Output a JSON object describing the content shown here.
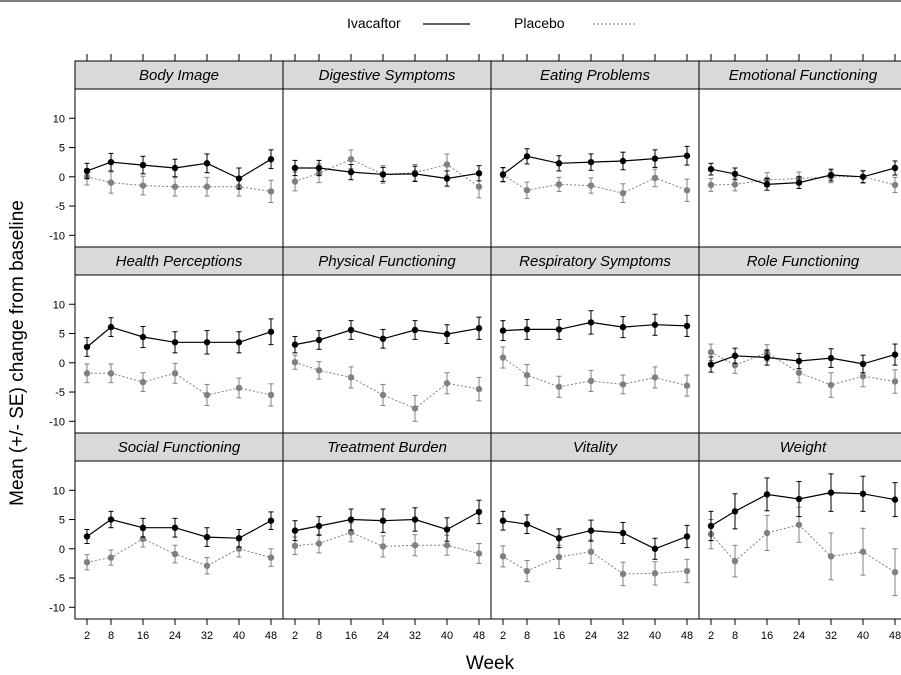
{
  "chart_data": {
    "type": "line",
    "ylabel": "Mean (+/- SE) change from baseline",
    "xlabel": "Week",
    "x": [
      2,
      8,
      16,
      24,
      32,
      40,
      48
    ],
    "x_ticks": [
      "2",
      "8",
      "16",
      "24",
      "32",
      "40",
      "48"
    ],
    "ylim": [
      -12,
      15
    ],
    "y_ticks": [
      "10",
      "5",
      "0",
      "-5",
      "-10"
    ],
    "y_tick_values": [
      10,
      5,
      0,
      -5,
      -10
    ],
    "legend": {
      "position": "top-center",
      "items": [
        {
          "name": "Ivacaftor",
          "color": "#000000",
          "style": "solid"
        },
        {
          "name": "Placebo",
          "color": "#808080",
          "style": "dotted"
        }
      ]
    },
    "panels": [
      {
        "title": "Body Image",
        "series": [
          {
            "name": "Ivacaftor",
            "values": [
              1,
              2.5,
              2,
              1.5,
              2.3,
              -0.3,
              3
            ],
            "se": [
              1.3,
              1.5,
              1.5,
              1.5,
              1.6,
              1.8,
              1.6
            ]
          },
          {
            "name": "Placebo",
            "values": [
              0,
              -1,
              -1.5,
              -1.7,
              -1.7,
              -1.7,
              -2.5
            ],
            "se": [
              1.4,
              1.8,
              1.6,
              1.6,
              1.6,
              1.6,
              1.9
            ]
          }
        ]
      },
      {
        "title": "Digestive Symptoms",
        "series": [
          {
            "name": "Ivacaftor",
            "values": [
              1.5,
              1.5,
              0.8,
              0.4,
              0.5,
              -0.3,
              0.6
            ],
            "se": [
              1.3,
              1.3,
              1.3,
              1.2,
              1.3,
              1.3,
              1.3
            ]
          },
          {
            "name": "Placebo",
            "values": [
              -0.8,
              0.6,
              3,
              0.4,
              0.7,
              2.1,
              -1.7
            ],
            "se": [
              1.6,
              1.6,
              1.6,
              1.5,
              1.4,
              1.8,
              1.9
            ]
          }
        ]
      },
      {
        "title": "Eating Problems",
        "series": [
          {
            "name": "Ivacaftor",
            "values": [
              0.4,
              3.5,
              2.3,
              2.5,
              2.7,
              3.1,
              3.6
            ],
            "se": [
              1.2,
              1.3,
              1.3,
              1.4,
              1.5,
              1.5,
              1.6
            ]
          },
          {
            "name": "Placebo",
            "values": [
              0.3,
              -2.3,
              -1.3,
              -1.5,
              -2.8,
              -0.2,
              -2.3
            ],
            "se": [
              1.2,
              1.4,
              1.2,
              1.3,
              1.6,
              1.5,
              1.9
            ]
          }
        ]
      },
      {
        "title": "Emotional Functioning",
        "series": [
          {
            "name": "Ivacaftor",
            "values": [
              1.3,
              0.5,
              -1.3,
              -1,
              0.3,
              0,
              1.5
            ],
            "se": [
              1,
              1,
              1,
              1,
              1,
              1,
              1.2
            ]
          },
          {
            "name": "Placebo",
            "values": [
              -1.4,
              -1.3,
              -0.5,
              -0.3,
              0,
              0,
              -1.4
            ],
            "se": [
              1.1,
              1.1,
              1.2,
              1.1,
              1,
              1.1,
              1.3
            ]
          }
        ]
      },
      {
        "title": "Health Perceptions",
        "series": [
          {
            "name": "Ivacaftor",
            "values": [
              2.7,
              6.1,
              4.4,
              3.5,
              3.5,
              3.5,
              5.3
            ],
            "se": [
              1.6,
              1.6,
              1.8,
              1.8,
              2,
              1.8,
              2.2
            ]
          },
          {
            "name": "Placebo",
            "values": [
              -1.8,
              -1.8,
              -3.3,
              -1.8,
              -5.5,
              -4.3,
              -5.5
            ],
            "se": [
              1.6,
              1.6,
              1.6,
              1.7,
              1.8,
              1.7,
              1.9
            ]
          }
        ]
      },
      {
        "title": "Physical Functioning",
        "series": [
          {
            "name": "Ivacaftor",
            "values": [
              3.1,
              3.9,
              5.6,
              4.1,
              5.6,
              4.9,
              5.9
            ],
            "se": [
              1.4,
              1.6,
              1.6,
              1.6,
              1.6,
              1.6,
              1.9
            ]
          },
          {
            "name": "Placebo",
            "values": [
              0.1,
              -1.3,
              -2.5,
              -5.5,
              -7.8,
              -3.5,
              -4.5
            ],
            "se": [
              1.2,
              1.5,
              1.8,
              1.8,
              2.2,
              1.8,
              2
            ]
          }
        ]
      },
      {
        "title": "Respiratory Symptoms",
        "series": [
          {
            "name": "Ivacaftor",
            "values": [
              5.5,
              5.7,
              5.7,
              6.9,
              6.1,
              6.5,
              6.3
            ],
            "se": [
              1.7,
              1.7,
              1.7,
              2,
              1.8,
              1.8,
              1.8
            ]
          },
          {
            "name": "Placebo",
            "values": [
              0.9,
              -2.1,
              -4.1,
              -3.1,
              -3.7,
              -2.5,
              -3.9
            ],
            "se": [
              1.8,
              1.8,
              1.8,
              1.8,
              1.6,
              1.8,
              1.8
            ]
          }
        ]
      },
      {
        "title": "Role Functioning",
        "series": [
          {
            "name": "Ivacaftor",
            "values": [
              -0.3,
              1.2,
              0.9,
              0.3,
              0.8,
              -0.2,
              1.4
            ],
            "se": [
              1.3,
              1.3,
              1.3,
              1.3,
              1.6,
              1.5,
              1.8
            ]
          },
          {
            "name": "Placebo",
            "values": [
              1.8,
              -0.4,
              1.7,
              -1.7,
              -3.8,
              -2.3,
              -3.2
            ],
            "se": [
              1.4,
              1.4,
              1.4,
              1.7,
              2.1,
              1.8,
              2
            ]
          }
        ]
      },
      {
        "title": "Social Functioning",
        "series": [
          {
            "name": "Ivacaftor",
            "values": [
              2.1,
              5,
              3.6,
              3.6,
              2,
              1.8,
              4.8
            ],
            "se": [
              1.2,
              1.4,
              1.6,
              1.6,
              1.6,
              1.5,
              1.5
            ]
          },
          {
            "name": "Placebo",
            "values": [
              -2.3,
              -1.5,
              1.7,
              -0.9,
              -2.9,
              0,
              -1.5
            ],
            "se": [
              1.3,
              1.3,
              1.4,
              1.5,
              1.4,
              1.4,
              1.5
            ]
          }
        ]
      },
      {
        "title": "Treatment Burden",
        "series": [
          {
            "name": "Ivacaftor",
            "values": [
              3.1,
              3.9,
              5,
              4.8,
              5,
              3.3,
              6.3
            ],
            "se": [
              1.7,
              1.6,
              1.8,
              2,
              2,
              2,
              2
            ]
          },
          {
            "name": "Placebo",
            "values": [
              0.5,
              0.9,
              2.8,
              0.4,
              0.6,
              0.6,
              -0.8
            ],
            "se": [
              1.5,
              1.6,
              1.6,
              1.8,
              1.8,
              1.7,
              1.7
            ]
          }
        ]
      },
      {
        "title": "Vitality",
        "series": [
          {
            "name": "Ivacaftor",
            "values": [
              4.8,
              4.2,
              1.8,
              3.1,
              2.7,
              0,
              2.1
            ],
            "se": [
              1.6,
              1.6,
              1.6,
              1.8,
              1.8,
              1.8,
              1.9
            ]
          },
          {
            "name": "Placebo",
            "values": [
              -1.3,
              -3.8,
              -1.4,
              -0.5,
              -4.3,
              -4.2,
              -3.8
            ],
            "se": [
              1.8,
              1.8,
              2,
              2,
              2,
              2,
              2
            ]
          }
        ]
      },
      {
        "title": "Weight",
        "series": [
          {
            "name": "Ivacaftor",
            "values": [
              3.9,
              6.4,
              9.3,
              8.5,
              9.6,
              9.4,
              8.4
            ],
            "se": [
              2.5,
              3,
              2.8,
              3,
              3.2,
              3,
              2.9
            ]
          },
          {
            "name": "Placebo",
            "values": [
              2.5,
              -2.1,
              2.7,
              4.1,
              -1.3,
              -0.5,
              -4
            ],
            "se": [
              2.5,
              2.7,
              3,
              3,
              4,
              4,
              4
            ]
          }
        ]
      }
    ]
  }
}
